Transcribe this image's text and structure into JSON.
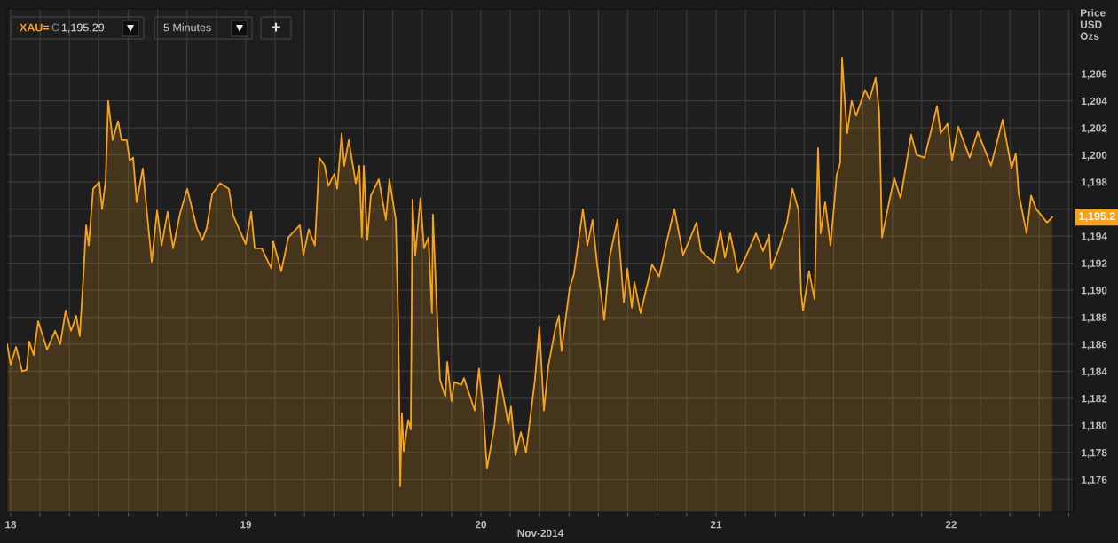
{
  "chart_data": {
    "type": "area",
    "xlabel": "Nov-2014",
    "ylabel": "Price\nUSD\nOzs",
    "xlim": [
      17.985,
      22.521
    ],
    "ylim": [
      1173.6,
      1210.8
    ],
    "xticks": [
      18,
      {
        "value": 18.125,
        "label": null
      },
      {
        "value": 18.25,
        "label": null
      },
      {
        "value": 18.375,
        "label": null
      },
      {
        "value": 18.5,
        "label": null
      },
      {
        "value": 18.625,
        "label": null
      },
      {
        "value": 18.75,
        "label": null
      },
      {
        "value": 18.875,
        "label": null
      },
      19,
      {
        "value": 19.125,
        "label": null
      },
      {
        "value": 19.25,
        "label": null
      },
      {
        "value": 19.375,
        "label": null
      },
      {
        "value": 19.5,
        "label": null
      },
      {
        "value": 19.625,
        "label": null
      },
      {
        "value": 19.75,
        "label": null
      },
      {
        "value": 19.875,
        "label": null
      },
      20,
      {
        "value": 20.125,
        "label": null
      },
      {
        "value": 20.25,
        "label": null
      },
      {
        "value": 20.375,
        "label": null
      },
      {
        "value": 20.5,
        "label": null
      },
      {
        "value": 20.625,
        "label": null
      },
      {
        "value": 20.75,
        "label": null
      },
      {
        "value": 20.875,
        "label": null
      },
      21,
      {
        "value": 21.125,
        "label": null
      },
      {
        "value": 21.25,
        "label": null
      },
      {
        "value": 21.375,
        "label": null
      },
      {
        "value": 21.5,
        "label": null
      },
      {
        "value": 21.625,
        "label": null
      },
      {
        "value": 21.75,
        "label": null
      },
      {
        "value": 21.875,
        "label": null
      },
      22,
      {
        "value": 22.125,
        "label": null
      },
      {
        "value": 22.25,
        "label": null
      },
      {
        "value": 22.375,
        "label": null
      },
      {
        "value": 22.5,
        "label": null
      }
    ],
    "yticks": [
      {
        "value": 1176,
        "label": "1,176"
      },
      {
        "value": 1178,
        "label": "1,178"
      },
      {
        "value": 1180,
        "label": "1,180"
      },
      {
        "value": 1182,
        "label": "1,182"
      },
      {
        "value": 1184,
        "label": "1,184"
      },
      {
        "value": 1186,
        "label": "1,186"
      },
      {
        "value": 1188,
        "label": "1,188"
      },
      {
        "value": 1190,
        "label": "1,190"
      },
      {
        "value": 1192,
        "label": "1,192"
      },
      {
        "value": 1194,
        "label": "1,194"
      },
      {
        "value": 1196,
        "label": null
      },
      {
        "value": 1198,
        "label": "1,198"
      },
      {
        "value": 1200,
        "label": "1,200"
      },
      {
        "value": 1202,
        "label": "1,202"
      },
      {
        "value": 1204,
        "label": "1,204"
      },
      {
        "value": 1206,
        "label": "1,206"
      }
    ],
    "grid": true,
    "series": [
      {
        "color": "#f7a21b",
        "x": [
          17.985,
          18,
          18.023,
          18.049,
          18.068,
          18.079,
          18.098,
          18.117,
          18.155,
          18.189,
          18.211,
          18.234,
          18.257,
          18.279,
          18.294,
          18.309,
          18.321,
          18.332,
          18.351,
          18.377,
          18.389,
          18.404,
          18.415,
          18.434,
          18.457,
          18.472,
          18.494,
          18.506,
          18.521,
          18.536,
          18.562,
          18.6,
          18.623,
          18.642,
          18.668,
          18.691,
          18.721,
          18.751,
          18.792,
          18.815,
          18.834,
          18.857,
          18.891,
          18.928,
          18.947,
          19.0,
          19.023,
          19.038,
          19.068,
          19.109,
          19.117,
          19.151,
          19.181,
          19.23,
          19.245,
          19.268,
          19.294,
          19.313,
          19.336,
          19.351,
          19.377,
          19.389,
          19.408,
          19.419,
          19.438,
          19.468,
          19.483,
          19.494,
          19.502,
          19.517,
          19.532,
          19.566,
          19.596,
          19.611,
          19.638,
          19.649,
          19.657,
          19.664,
          19.672,
          19.691,
          19.702,
          19.709,
          19.721,
          19.743,
          19.758,
          19.777,
          19.792,
          19.796,
          19.811,
          19.826,
          19.849,
          19.857,
          19.875,
          19.887,
          19.917,
          19.928,
          19.974,
          19.992,
          20.011,
          20.026,
          20.057,
          20.079,
          20.117,
          20.128,
          20.147,
          20.17,
          20.192,
          20.23,
          20.249,
          20.268,
          20.287,
          20.317,
          20.332,
          20.343,
          20.377,
          20.396,
          20.434,
          20.453,
          20.475,
          20.494,
          20.525,
          20.547,
          20.581,
          20.608,
          20.623,
          20.642,
          20.653,
          20.679,
          20.728,
          20.758,
          20.792,
          20.823,
          20.86,
          20.887,
          20.917,
          20.936,
          20.992,
          21.019,
          21.038,
          21.06,
          21.094,
          21.125,
          21.17,
          21.2,
          21.226,
          21.234,
          21.264,
          21.302,
          21.325,
          21.351,
          21.362,
          21.37,
          21.396,
          21.419,
          21.434,
          21.445,
          21.464,
          21.487,
          21.502,
          21.513,
          21.528,
          21.536,
          21.547,
          21.558,
          21.577,
          21.596,
          21.634,
          21.653,
          21.679,
          21.694,
          21.706,
          21.736,
          21.758,
          21.785,
          21.83,
          21.853,
          21.887,
          21.94,
          21.955,
          21.985,
          22.004,
          22.03,
          22.079,
          22.113,
          22.17,
          22.219,
          22.257,
          22.275,
          22.287,
          22.321,
          22.34,
          22.362,
          22.408,
          22.43
        ],
        "values": [
          1186.0,
          1184.5,
          1185.8,
          1184.0,
          1184.1,
          1186.2,
          1185.2,
          1187.7,
          1185.6,
          1187.0,
          1186.0,
          1188.5,
          1187.0,
          1188.1,
          1186.6,
          1190.9,
          1194.8,
          1193.3,
          1197.5,
          1198.0,
          1196.0,
          1198.1,
          1204.0,
          1201.1,
          1202.5,
          1201.1,
          1201.1,
          1199.6,
          1199.8,
          1196.5,
          1199.0,
          1192.1,
          1195.9,
          1193.3,
          1195.8,
          1193.1,
          1195.7,
          1197.5,
          1194.6,
          1193.7,
          1194.6,
          1197.1,
          1197.9,
          1197.5,
          1195.5,
          1193.4,
          1195.8,
          1193.1,
          1193.1,
          1191.6,
          1193.6,
          1191.4,
          1193.9,
          1194.8,
          1192.6,
          1194.5,
          1193.3,
          1199.8,
          1199.2,
          1197.7,
          1198.6,
          1197.5,
          1201.6,
          1199.2,
          1201.1,
          1197.9,
          1199.2,
          1193.9,
          1199.2,
          1193.7,
          1197.0,
          1198.2,
          1195.2,
          1198.2,
          1195.2,
          1187.4,
          1175.5,
          1180.9,
          1178.1,
          1180.4,
          1179.7,
          1196.7,
          1192.6,
          1196.8,
          1193.1,
          1193.9,
          1188.3,
          1195.6,
          1189.3,
          1183.4,
          1182.1,
          1184.7,
          1181.8,
          1183.2,
          1183.0,
          1183.5,
          1181.1,
          1184.2,
          1180.9,
          1176.8,
          1179.9,
          1183.7,
          1180.1,
          1181.4,
          1177.8,
          1179.5,
          1178.0,
          1183.4,
          1187.3,
          1181.1,
          1184.4,
          1187.2,
          1188.1,
          1185.5,
          1190.1,
          1191.2,
          1196.0,
          1193.3,
          1195.2,
          1192.0,
          1187.8,
          1192.4,
          1195.2,
          1189.1,
          1191.6,
          1188.7,
          1190.6,
          1188.3,
          1191.9,
          1191.0,
          1193.7,
          1196.0,
          1192.6,
          1193.7,
          1195.0,
          1192.9,
          1192.0,
          1194.4,
          1192.4,
          1194.2,
          1191.3,
          1192.4,
          1194.2,
          1192.9,
          1194.1,
          1191.6,
          1192.9,
          1195.0,
          1197.5,
          1195.9,
          1189.8,
          1188.5,
          1191.4,
          1189.3,
          1200.5,
          1194.2,
          1196.5,
          1193.3,
          1196.2,
          1198.5,
          1199.4,
          1207.2,
          1204.2,
          1201.6,
          1204.0,
          1202.9,
          1204.8,
          1204.1,
          1205.7,
          1203.2,
          1193.9,
          1196.5,
          1198.3,
          1196.8,
          1201.5,
          1200.0,
          1199.8,
          1203.6,
          1201.6,
          1202.3,
          1199.6,
          1202.1,
          1199.8,
          1201.7,
          1199.2,
          1202.6,
          1199.0,
          1200.1,
          1197.2,
          1194.2,
          1197.0,
          1196.0,
          1195.0,
          1195.4
        ]
      }
    ],
    "annotations": [
      "XAU=",
      "C",
      "1,195.29",
      "5 Minutes",
      "+",
      "1,195.2"
    ]
  }
}
